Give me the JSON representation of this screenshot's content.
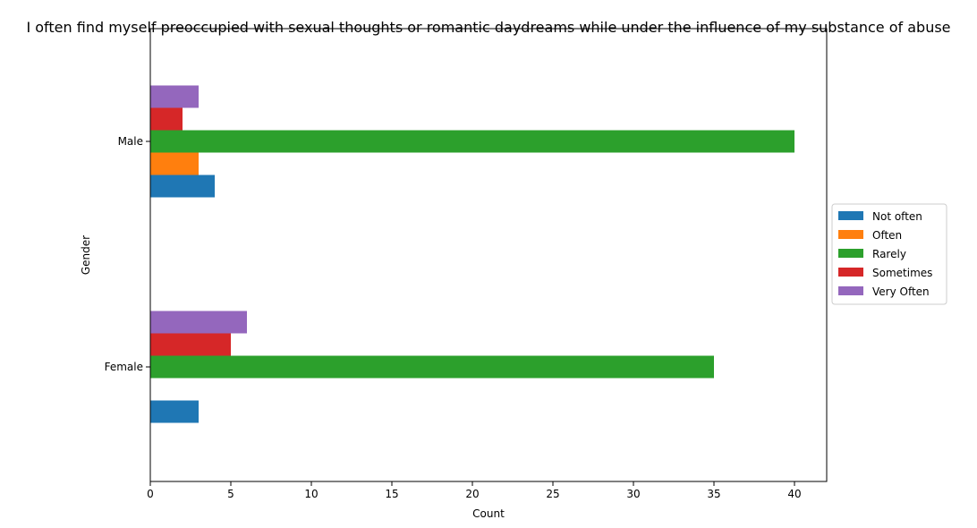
{
  "chart_data": {
    "type": "bar",
    "orientation": "horizontal",
    "title": "I often find myself preoccupied with sexual thoughts or romantic daydreams while under the influence of my substance of abuse",
    "xlabel": "Count",
    "ylabel": "Gender",
    "categories": [
      "Female",
      "Male"
    ],
    "xlim": [
      0,
      42
    ],
    "xticks": [
      0,
      5,
      10,
      15,
      20,
      25,
      30,
      35,
      40
    ],
    "grid": false,
    "legend_position": "center-right-outside",
    "series": [
      {
        "name": "Not often",
        "color": "#1f77b4",
        "values": [
          3,
          4
        ]
      },
      {
        "name": "Often",
        "color": "#ff7f0e",
        "values": [
          0,
          3
        ]
      },
      {
        "name": "Rarely",
        "color": "#2ca02c",
        "values": [
          35,
          40
        ]
      },
      {
        "name": "Sometimes",
        "color": "#d62728",
        "values": [
          5,
          2
        ]
      },
      {
        "name": "Very Often",
        "color": "#9467bd",
        "values": [
          6,
          3
        ]
      }
    ]
  }
}
